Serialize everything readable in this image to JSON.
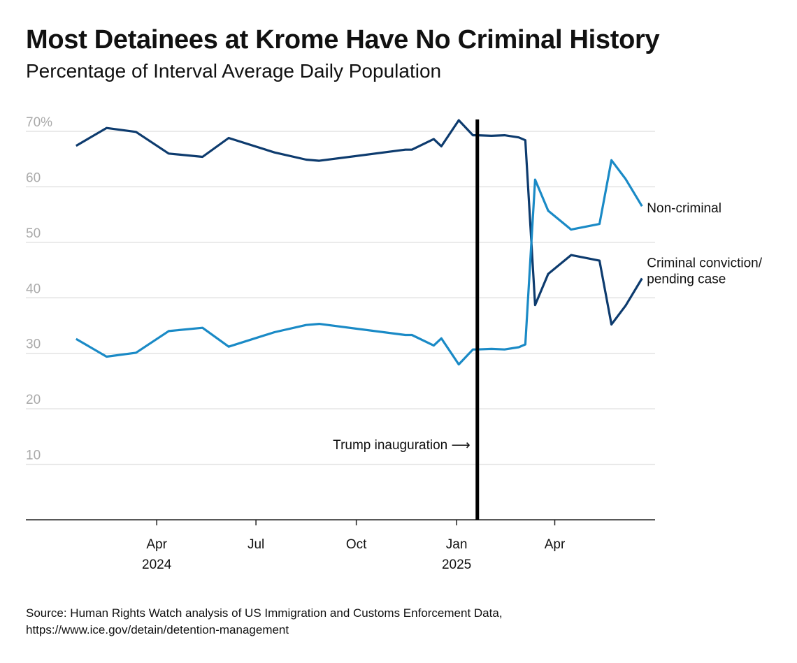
{
  "chart_data": {
    "type": "line",
    "title": "Most Detainees at Krome Have No Criminal History",
    "subtitle": "Percentage of Interval Average Daily Population",
    "xlabel": "",
    "ylabel": "",
    "ylim": [
      0,
      70
    ],
    "xlim": [
      "2023-12-03",
      "2025-07-02"
    ],
    "grid": true,
    "y_ticks": [
      {
        "value": 10,
        "label": "10"
      },
      {
        "value": 20,
        "label": "20"
      },
      {
        "value": 30,
        "label": "30"
      },
      {
        "value": 40,
        "label": "40"
      },
      {
        "value": 50,
        "label": "50"
      },
      {
        "value": 60,
        "label": "60"
      },
      {
        "value": 70,
        "label": "70%"
      }
    ],
    "x_ticks": [
      {
        "date": "2024-04-01",
        "label": "Apr",
        "sublabel": "2024"
      },
      {
        "date": "2024-07-01",
        "label": "Jul",
        "sublabel": ""
      },
      {
        "date": "2024-10-01",
        "label": "Oct",
        "sublabel": ""
      },
      {
        "date": "2025-01-01",
        "label": "Jan",
        "sublabel": "2025"
      },
      {
        "date": "2025-04-01",
        "label": "Apr",
        "sublabel": ""
      }
    ],
    "x": [
      "2024-01-18",
      "2024-02-15",
      "2024-03-13",
      "2024-04-12",
      "2024-05-13",
      "2024-06-06",
      "2024-07-18",
      "2024-08-16",
      "2024-08-28",
      "2024-11-15",
      "2024-11-21",
      "2024-12-11",
      "2024-12-18",
      "2025-01-03",
      "2025-01-16",
      "2025-01-20",
      "2025-02-02",
      "2025-02-14",
      "2025-02-27",
      "2025-03-05",
      "2025-03-14",
      "2025-03-26",
      "2025-04-16",
      "2025-05-12",
      "2025-05-23",
      "2025-06-05",
      "2025-06-20"
    ],
    "series": [
      {
        "name": "Criminal conviction/ pending case",
        "label_lines": [
          "Criminal conviction/",
          "pending case"
        ],
        "color": "#0d3b6e",
        "values": [
          67.4,
          70.6,
          69.9,
          66.0,
          65.4,
          68.8,
          66.2,
          64.9,
          64.7,
          66.7,
          66.7,
          68.6,
          67.3,
          72.0,
          69.3,
          69.3,
          69.2,
          69.3,
          68.9,
          68.4,
          38.7,
          44.3,
          47.7,
          46.7,
          35.2,
          38.6,
          43.5
        ]
      },
      {
        "name": "Non-criminal",
        "label_lines": [
          "Non-criminal"
        ],
        "color": "#1a8ac6",
        "values": [
          32.6,
          29.4,
          30.1,
          34.0,
          34.6,
          31.2,
          33.8,
          35.1,
          35.3,
          33.3,
          33.3,
          31.4,
          32.7,
          28.0,
          30.7,
          30.7,
          30.8,
          30.7,
          31.1,
          31.6,
          61.3,
          55.7,
          52.3,
          53.3,
          64.8,
          61.4,
          56.5
        ]
      }
    ],
    "annotations": [
      {
        "date": "2025-01-20",
        "text": "Trump inauguration",
        "arrow": "→"
      }
    ]
  },
  "source": {
    "line1": "Source: Human Rights Watch analysis of US Immigration and Customs Enforcement Data,",
    "line2": "https://www.ice.gov/detain/detention-management"
  }
}
